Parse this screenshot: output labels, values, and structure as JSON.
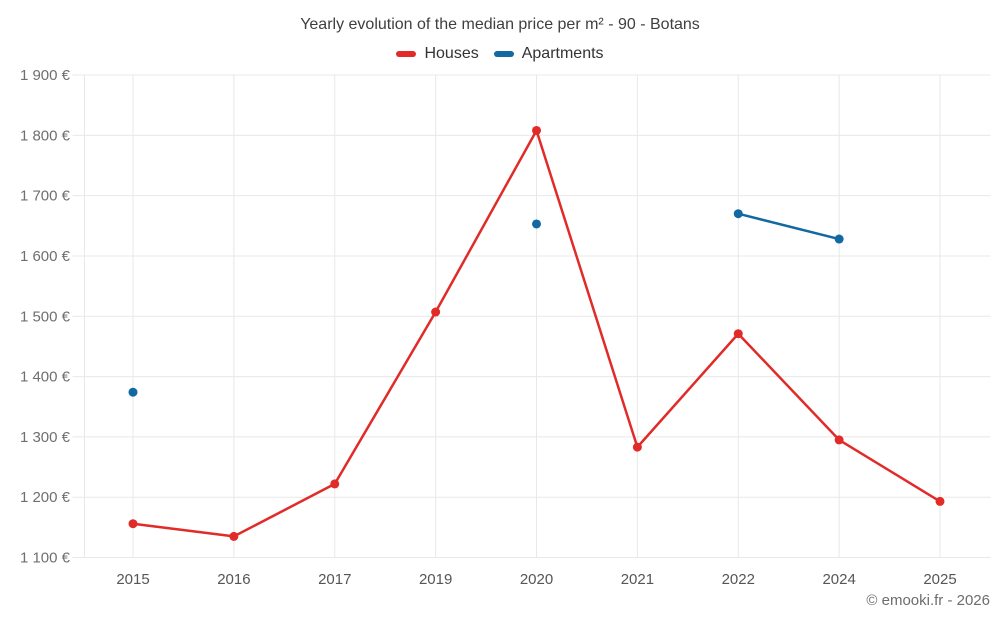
{
  "title": "Yearly evolution of the median price per m² - 90 - Botans",
  "watermark": "© emooki.fr - 2026",
  "legend": [
    {
      "label": "Houses",
      "color": "#e12b28"
    },
    {
      "label": "Apartments",
      "color": "#1269a2"
    }
  ],
  "colors": {
    "houses": "#e12b28",
    "apartments": "#1269a2",
    "gridline": "#e8e8e8",
    "y_tick_text": "#6f6f6f",
    "x_tick_text": "#565656"
  },
  "chart_data": {
    "type": "line",
    "title": "Yearly evolution of the median price per m² - 90 - Botans",
    "xlabel": "",
    "ylabel": "",
    "categories": [
      "2015",
      "2016",
      "2017",
      "2019",
      "2020",
      "2021",
      "2022",
      "2024",
      "2025"
    ],
    "series": [
      {
        "name": "Houses",
        "color": "#e12b28",
        "values": [
          1156,
          1135,
          1222,
          1507,
          1808,
          1283,
          1471,
          1295,
          1193
        ]
      },
      {
        "name": "Apartments",
        "color": "#1269a2",
        "values": [
          1374,
          null,
          null,
          null,
          1653,
          null,
          1670,
          1628,
          null
        ]
      }
    ],
    "ylim": [
      1100,
      1900
    ],
    "ytick_step": 100,
    "ytick_labels": [
      "1 900 €",
      "1 800 €",
      "1 700 €",
      "1 600 €",
      "1 500 €",
      "1 400 €",
      "1 300 €",
      "1 200 €",
      "1 100 €"
    ],
    "currency": "€",
    "grid": true,
    "legend_position": "top"
  }
}
